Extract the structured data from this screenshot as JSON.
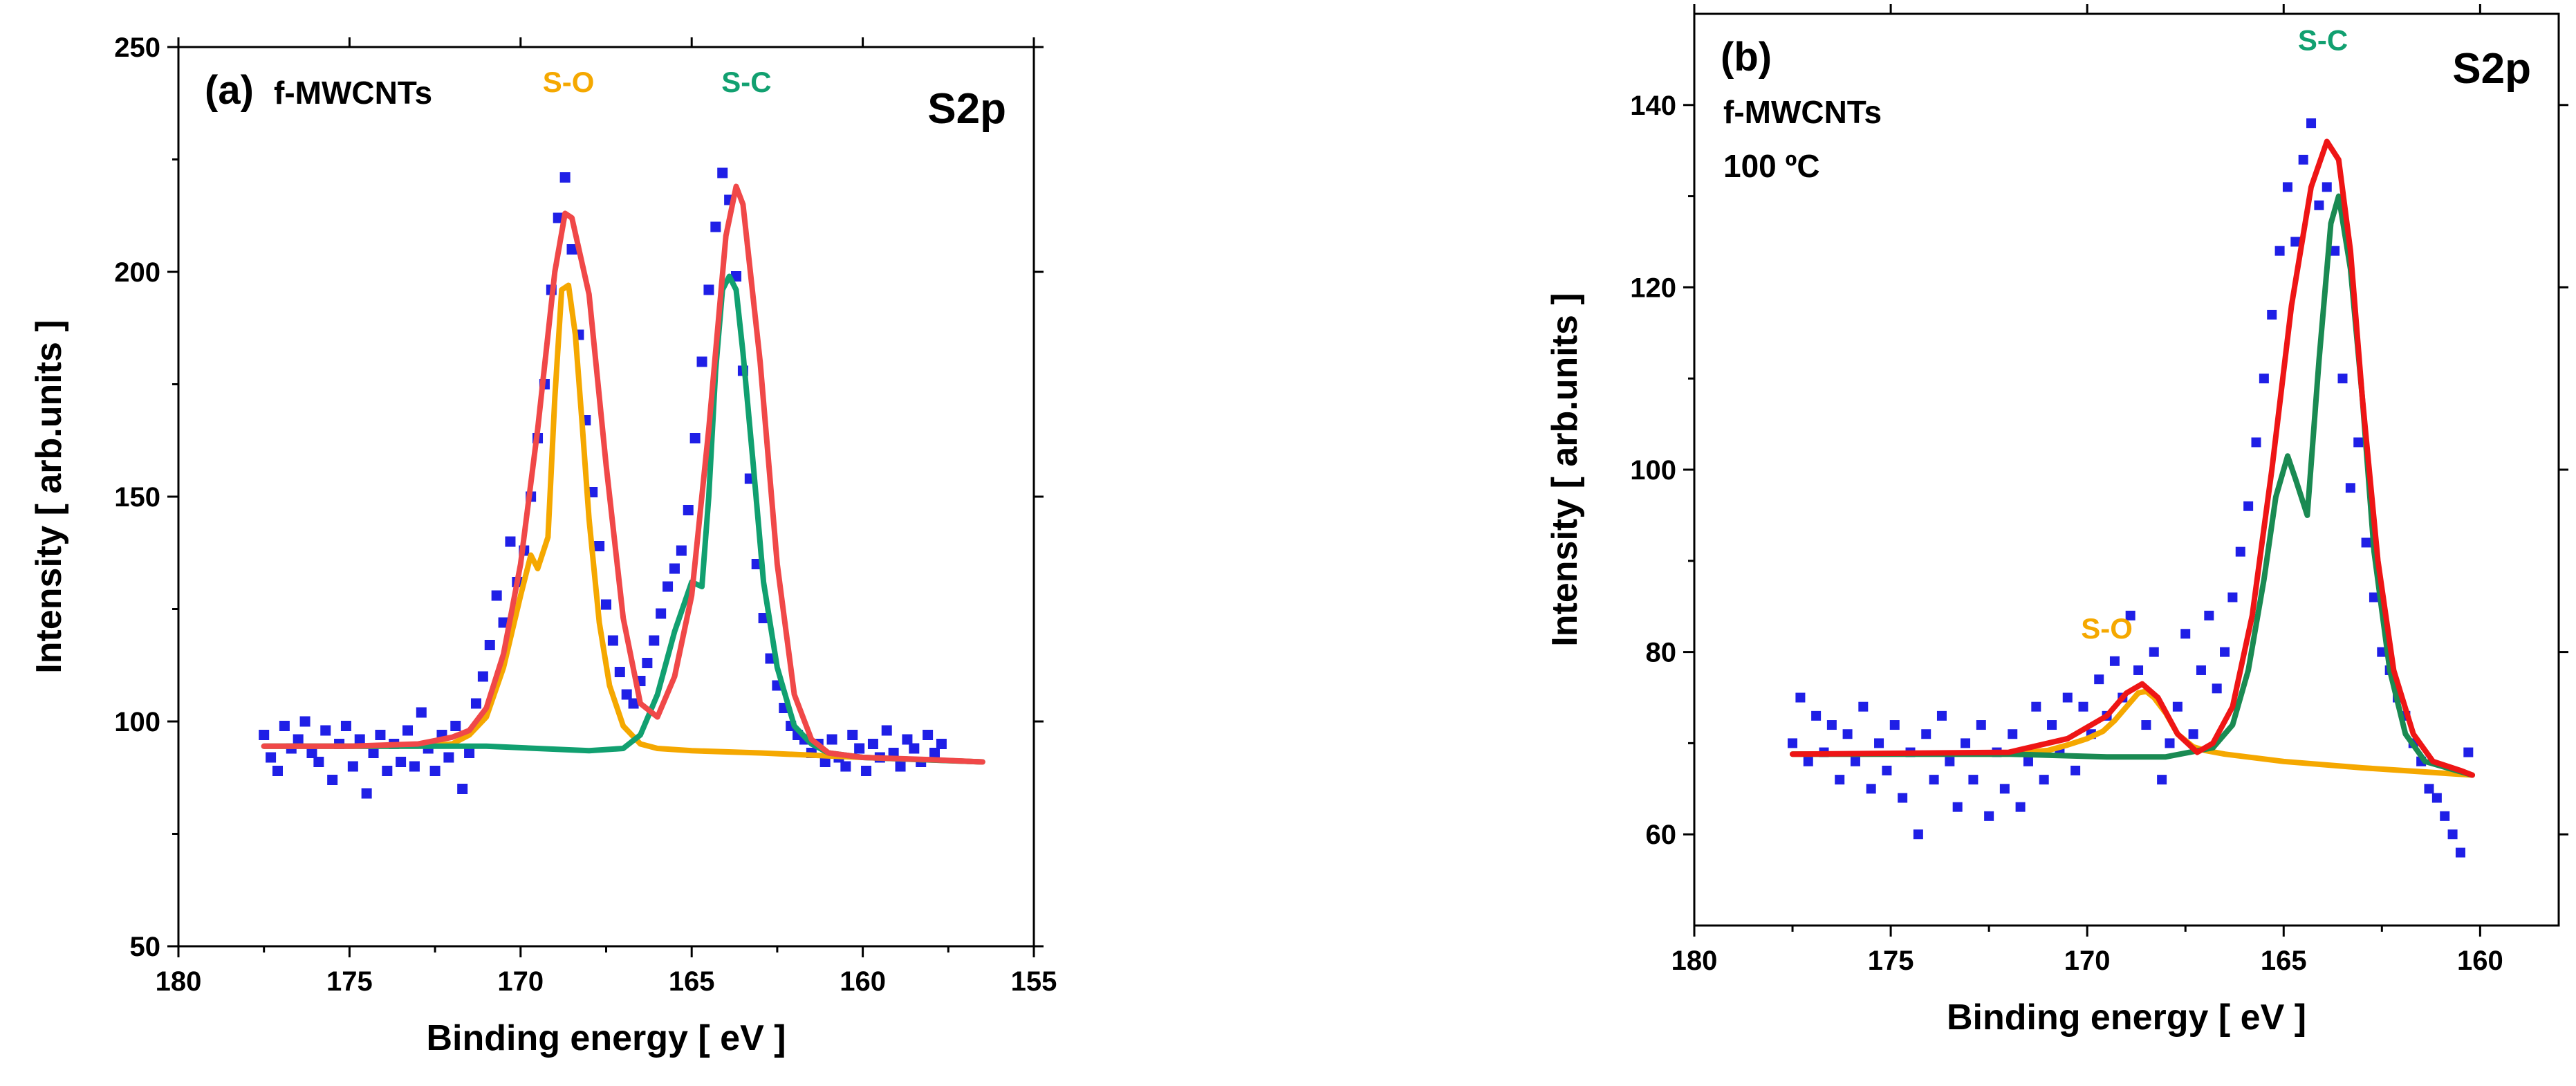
{
  "colors": {
    "points": "#1f1fe6",
    "envelope": "#f04848",
    "envelope_b": "#ee1515",
    "s_o": "#f5a800",
    "s_c": "#11a070",
    "s_c_secondary": "#1a8a52",
    "axis": "#000000"
  },
  "chart_data": [
    {
      "type": "line",
      "panel_label": "(a)",
      "sample_lines": [
        "f-MWCNTs"
      ],
      "spectrum_label": "S2p",
      "xlabel": "Binding energy [ eV ]",
      "ylabel": "Intensity [ arb.units ]",
      "xlim": [
        180,
        155
      ],
      "ylim": [
        50,
        250
      ],
      "xticks": [
        180,
        175,
        170,
        165,
        160,
        155
      ],
      "yticks": [
        50,
        100,
        150,
        200,
        250
      ],
      "series": [
        {
          "name": "Experimental data",
          "style": "squares",
          "x": [
            177.5,
            177.3,
            177.1,
            176.9,
            176.7,
            176.5,
            176.3,
            176.1,
            175.9,
            175.7,
            175.5,
            175.3,
            175.1,
            174.9,
            174.7,
            174.5,
            174.3,
            174.1,
            173.9,
            173.7,
            173.5,
            173.3,
            173.1,
            172.9,
            172.7,
            172.5,
            172.3,
            172.1,
            171.9,
            171.7,
            171.5,
            171.3,
            171.1,
            170.9,
            170.7,
            170.5,
            170.3,
            170.1,
            169.9,
            169.7,
            169.5,
            169.3,
            169.1,
            168.9,
            168.7,
            168.5,
            168.3,
            168.1,
            167.9,
            167.7,
            167.5,
            167.3,
            167.1,
            166.9,
            166.7,
            166.5,
            166.3,
            166.1,
            165.9,
            165.7,
            165.5,
            165.3,
            165.1,
            164.9,
            164.7,
            164.5,
            164.3,
            164.1,
            163.9,
            163.7,
            163.5,
            163.3,
            163.1,
            162.9,
            162.7,
            162.5,
            162.3,
            162.1,
            161.9,
            161.7,
            161.5,
            161.3,
            161.1,
            160.9,
            160.7,
            160.5,
            160.3,
            160.1,
            159.9,
            159.7,
            159.5,
            159.3,
            159.1,
            158.9,
            158.7,
            158.5,
            158.3,
            158.1,
            157.9,
            157.7
          ],
          "y": [
            97,
            92,
            89,
            99,
            94,
            96,
            100,
            93,
            91,
            98,
            87,
            95,
            99,
            90,
            96,
            84,
            93,
            97,
            89,
            95,
            91,
            98,
            90,
            102,
            94,
            89,
            97,
            92,
            99,
            85,
            93,
            104,
            110,
            117,
            128,
            122,
            140,
            131,
            138,
            150,
            163,
            175,
            196,
            212,
            221,
            205,
            186,
            167,
            151,
            139,
            126,
            118,
            111,
            106,
            104,
            109,
            113,
            118,
            124,
            130,
            134,
            138,
            147,
            163,
            180,
            196,
            210,
            222,
            216,
            199,
            178,
            154,
            135,
            123,
            114,
            108,
            103,
            99,
            97,
            96,
            93,
            95,
            91,
            96,
            92,
            90,
            97,
            94,
            89,
            95,
            92,
            98,
            93,
            90,
            96,
            94,
            91,
            97,
            93,
            95
          ]
        },
        {
          "name": "Envelope fit",
          "style": "line",
          "x": [
            177.5,
            175,
            173,
            172,
            171.5,
            171,
            170.5,
            170,
            169.5,
            169,
            168.7,
            168.5,
            168,
            167.5,
            167,
            166.5,
            166,
            165.5,
            165,
            164.5,
            164,
            163.7,
            163.5,
            163,
            162.5,
            162,
            161.5,
            161,
            160,
            158,
            156.5
          ],
          "y": [
            94.5,
            94.5,
            95,
            96.5,
            98,
            103,
            115,
            135,
            165,
            200,
            213,
            212,
            195,
            157,
            123,
            104,
            101,
            110,
            128,
            165,
            208,
            219,
            215,
            180,
            135,
            106,
            96,
            93,
            92,
            91.5,
            91
          ]
        },
        {
          "name": "S-O",
          "style": "line",
          "color_key": "s_o",
          "x": [
            177.5,
            173,
            172,
            171.5,
            171,
            170.5,
            170,
            169.7,
            169.5,
            169.2,
            169,
            168.8,
            168.6,
            168.4,
            168.2,
            168,
            167.7,
            167.4,
            167,
            166.5,
            166,
            165,
            163,
            160,
            156.5
          ],
          "y": [
            94.5,
            94.5,
            95,
            97,
            101,
            112,
            128,
            137,
            134,
            141,
            172,
            196,
            197,
            186,
            166,
            145,
            122,
            108,
            99,
            95,
            94,
            93.5,
            93,
            92,
            91
          ]
        },
        {
          "name": "S-C",
          "style": "line",
          "color_key": "s_c",
          "x": [
            177.5,
            171,
            168,
            167,
            166.5,
            166,
            165.5,
            165,
            164.7,
            164.5,
            164.3,
            164.1,
            163.9,
            163.7,
            163.5,
            163.2,
            162.9,
            162.5,
            162,
            161.5,
            161,
            160,
            156.5
          ],
          "y": [
            94.5,
            94.5,
            93.5,
            94,
            97,
            106,
            120,
            131,
            130,
            150,
            178,
            196,
            199,
            196,
            182,
            157,
            131,
            112,
            99,
            95,
            93,
            92,
            91
          ]
        }
      ],
      "annotations": [
        {
          "text": "S-O",
          "x": 168.6,
          "y": 240,
          "color_key": "s_o"
        },
        {
          "text": "S-C",
          "x": 163.4,
          "y": 240,
          "color_key": "s_c"
        }
      ]
    },
    {
      "type": "line",
      "panel_label": "(b)",
      "sample_lines": [
        "f-MWCNTs",
        "100 ºC"
      ],
      "spectrum_label": "S2p",
      "xlabel": "Binding energy [ eV ]",
      "ylabel": "Intensity [ arb.units ]",
      "xlim": [
        180,
        158
      ],
      "ylim": [
        50,
        150
      ],
      "xticks": [
        180,
        175,
        170,
        165,
        160
      ],
      "yticks": [
        60,
        80,
        100,
        120,
        140
      ],
      "series": [
        {
          "name": "Experimental data",
          "style": "squares",
          "x": [
            177.5,
            177.3,
            177.1,
            176.9,
            176.7,
            176.5,
            176.3,
            176.1,
            175.9,
            175.7,
            175.5,
            175.3,
            175.1,
            174.9,
            174.7,
            174.5,
            174.3,
            174.1,
            173.9,
            173.7,
            173.5,
            173.3,
            173.1,
            172.9,
            172.7,
            172.5,
            172.3,
            172.1,
            171.9,
            171.7,
            171.5,
            171.3,
            171.1,
            170.9,
            170.7,
            170.5,
            170.3,
            170.1,
            169.9,
            169.7,
            169.5,
            169.3,
            169.1,
            168.9,
            168.7,
            168.5,
            168.3,
            168.1,
            167.9,
            167.7,
            167.5,
            167.3,
            167.1,
            166.9,
            166.7,
            166.5,
            166.3,
            166.1,
            165.9,
            165.7,
            165.5,
            165.3,
            165.1,
            164.9,
            164.7,
            164.5,
            164.3,
            164.1,
            163.9,
            163.7,
            163.5,
            163.3,
            163.1,
            162.9,
            162.7,
            162.5,
            162.3,
            162.1,
            161.9,
            161.7,
            161.5,
            161.3,
            161.1,
            160.9,
            160.7,
            160.5,
            160.3
          ],
          "y": [
            70,
            75,
            68,
            73,
            69,
            72,
            66,
            71,
            68,
            74,
            65,
            70,
            67,
            72,
            64,
            69,
            60,
            71,
            66,
            73,
            68,
            63,
            70,
            66,
            72,
            62,
            69,
            65,
            71,
            63,
            68,
            74,
            66,
            72,
            69,
            75,
            67,
            74,
            71,
            77,
            73,
            79,
            75,
            84,
            78,
            72,
            80,
            66,
            70,
            74,
            82,
            71,
            78,
            84,
            76,
            80,
            86,
            91,
            96,
            103,
            110,
            117,
            124,
            131,
            125,
            134,
            138,
            129,
            131,
            124,
            110,
            98,
            103,
            92,
            86,
            80,
            78,
            75,
            73,
            70,
            68,
            65,
            64,
            62,
            60,
            58,
            69
          ]
        },
        {
          "name": "Envelope fit",
          "style": "line",
          "color_key": "envelope_b",
          "x": [
            177.5,
            172,
            170.5,
            169.5,
            169,
            168.6,
            168.2,
            167.7,
            167.2,
            166.8,
            166.3,
            165.8,
            165.3,
            164.8,
            164.3,
            163.9,
            163.6,
            163.3,
            163,
            162.6,
            162.2,
            161.7,
            161.2,
            160.5,
            160.2
          ],
          "y": [
            68.8,
            69,
            70.5,
            73,
            75.5,
            76.5,
            75,
            71,
            69,
            70,
            74,
            84,
            100,
            118,
            131,
            136,
            134,
            124,
            108,
            90,
            78,
            71,
            68,
            67,
            66.5
          ]
        },
        {
          "name": "S-O",
          "style": "line",
          "color_key": "s_o",
          "x": [
            177.5,
            172,
            171,
            170.5,
            170,
            169.6,
            169.3,
            169,
            168.7,
            168.5,
            168.3,
            168,
            167.7,
            167.3,
            167,
            166.5,
            165,
            163,
            160.2
          ],
          "y": [
            68.8,
            68.8,
            69.2,
            69.8,
            70.5,
            71.3,
            72.5,
            74,
            75.5,
            75.7,
            75,
            73.3,
            71,
            69.6,
            69.2,
            68.8,
            68,
            67.3,
            66.5
          ]
        },
        {
          "name": "S-C",
          "style": "line",
          "color_key": "s_c_secondary",
          "x": [
            177.5,
            172,
            169.5,
            168,
            166.8,
            166.3,
            165.9,
            165.5,
            165.2,
            164.9,
            164.7,
            164.4,
            164.1,
            163.8,
            163.6,
            163.3,
            163,
            162.7,
            162.3,
            161.9,
            161.4,
            160.2
          ],
          "y": [
            68.8,
            68.8,
            68.5,
            68.5,
            69.5,
            72,
            78,
            88,
            97,
            101.5,
            99,
            95,
            112,
            127,
            130,
            122,
            108,
            91,
            78,
            71,
            68,
            66.5
          ]
        }
      ],
      "annotations": [
        {
          "text": "S-O",
          "x": 169.5,
          "y": 81.5,
          "color_key": "s_o"
        },
        {
          "text": "S-C",
          "x": 164.0,
          "y": 146,
          "color_key": "s_c"
        }
      ]
    }
  ]
}
